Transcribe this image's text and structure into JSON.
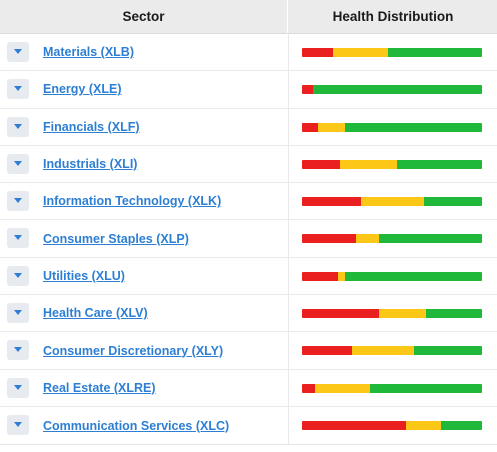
{
  "header": {
    "sector_label": "Sector",
    "health_label": "Health Distribution"
  },
  "colors": {
    "red": "#ea1f1f",
    "yellow": "#fcc716",
    "green": "#1fb83a",
    "link": "#2d7fd3"
  },
  "rows": [
    {
      "label": "Materials (XLB)",
      "health": {
        "red": 0.17,
        "yellow": 0.31,
        "green": 0.52
      }
    },
    {
      "label": "Energy (XLE)",
      "health": {
        "red": 0.06,
        "yellow": 0.0,
        "green": 0.94
      }
    },
    {
      "label": "Financials (XLF)",
      "health": {
        "red": 0.09,
        "yellow": 0.15,
        "green": 0.76
      }
    },
    {
      "label": "Industrials (XLI)",
      "health": {
        "red": 0.21,
        "yellow": 0.32,
        "green": 0.47
      }
    },
    {
      "label": "Information Technology (XLK)",
      "health": {
        "red": 0.33,
        "yellow": 0.35,
        "green": 0.32
      }
    },
    {
      "label": "Consumer Staples (XLP)",
      "health": {
        "red": 0.3,
        "yellow": 0.13,
        "green": 0.57
      }
    },
    {
      "label": "Utilities (XLU)",
      "health": {
        "red": 0.2,
        "yellow": 0.04,
        "green": 0.76
      }
    },
    {
      "label": "Health Care (XLV)",
      "health": {
        "red": 0.43,
        "yellow": 0.26,
        "green": 0.31
      }
    },
    {
      "label": "Consumer Discretionary (XLY)",
      "health": {
        "red": 0.28,
        "yellow": 0.34,
        "green": 0.38
      }
    },
    {
      "label": "Real Estate (XLRE)",
      "health": {
        "red": 0.07,
        "yellow": 0.31,
        "green": 0.62
      }
    },
    {
      "label": "Communication Services (XLC)",
      "health": {
        "red": 0.58,
        "yellow": 0.19,
        "green": 0.23
      }
    }
  ]
}
